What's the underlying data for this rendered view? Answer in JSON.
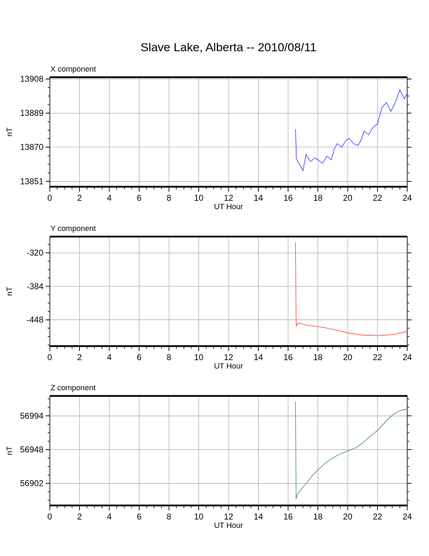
{
  "title": "Slave Lake, Alberta -- 2010/08/11",
  "colors": {
    "x": "#2b2bff",
    "y": "#ff3030",
    "z": "#2e8b57",
    "grid": "#999999",
    "frame": "#000000"
  },
  "chart_data": [
    {
      "type": "line",
      "panel_title": "X component",
      "xlabel": "UT Hour",
      "ylabel": "nT",
      "xlim": [
        0,
        24
      ],
      "ylim": [
        13848,
        13909
      ],
      "xticks": [
        0,
        2,
        4,
        6,
        8,
        10,
        12,
        14,
        16,
        18,
        20,
        22,
        24
      ],
      "yticks": [
        13908,
        13889,
        13870,
        13851
      ],
      "grid": true,
      "color": "#2b2bff",
      "x": [
        16.5,
        16.55,
        16.65,
        16.8,
        17.0,
        17.2,
        17.5,
        17.8,
        18.0,
        18.3,
        18.6,
        18.9,
        19.1,
        19.3,
        19.6,
        19.9,
        20.1,
        20.4,
        20.7,
        20.9,
        21.1,
        21.4,
        21.7,
        22.0,
        22.3,
        22.6,
        22.9,
        23.2,
        23.5,
        23.8,
        24.0
      ],
      "y": [
        13880,
        13864,
        13862,
        13860,
        13857,
        13866,
        13862,
        13864,
        13863,
        13861,
        13865,
        13863,
        13869,
        13872,
        13870,
        13874,
        13875,
        13872,
        13871,
        13874,
        13879,
        13877,
        13881,
        13883,
        13892,
        13895,
        13890,
        13895,
        13902,
        13897,
        13900
      ]
    },
    {
      "type": "line",
      "panel_title": "Y component",
      "xlabel": "UT Hour",
      "ylabel": "nT",
      "xlim": [
        0,
        24
      ],
      "ylim": [
        -498,
        -289
      ],
      "xticks": [
        0,
        2,
        4,
        6,
        8,
        10,
        12,
        14,
        16,
        18,
        20,
        22,
        24
      ],
      "yticks": [
        -320,
        -384,
        -448
      ],
      "grid": true,
      "color": "#ff3030",
      "x": [
        16.5,
        16.53,
        16.56,
        16.6,
        16.7,
        16.9,
        17.2,
        17.6,
        18.0,
        18.5,
        19.0,
        19.5,
        20.0,
        20.5,
        21.0,
        21.5,
        22.0,
        22.5,
        23.0,
        23.5,
        24.0
      ],
      "y": [
        -300,
        -449,
        -460,
        -456,
        -454,
        -455,
        -458,
        -459,
        -461,
        -463,
        -466,
        -469,
        -473,
        -475,
        -477,
        -477,
        -478,
        -477,
        -476,
        -473,
        -470
      ]
    },
    {
      "type": "line",
      "panel_title": "Z component",
      "xlabel": "UT Hour",
      "ylabel": "nT",
      "xlim": [
        0,
        24
      ],
      "ylim": [
        56872,
        57021
      ],
      "xticks": [
        0,
        2,
        4,
        6,
        8,
        10,
        12,
        14,
        16,
        18,
        20,
        22,
        24
      ],
      "yticks": [
        56994,
        56948,
        56902
      ],
      "grid": true,
      "color": "#2e8b57",
      "x": [
        16.5,
        16.53,
        16.56,
        16.6,
        16.8,
        17.0,
        17.3,
        17.6,
        18.0,
        18.4,
        18.8,
        19.2,
        19.6,
        20.0,
        20.5,
        21.0,
        21.5,
        22.0,
        22.5,
        23.0,
        23.5,
        24.0
      ],
      "y": [
        57013,
        56881,
        56883,
        56886,
        56892,
        56897,
        56904,
        56912,
        56920,
        56928,
        56934,
        56939,
        56943,
        56946,
        56950,
        56957,
        56966,
        56974,
        56985,
        56995,
        57001,
        57003
      ]
    }
  ]
}
